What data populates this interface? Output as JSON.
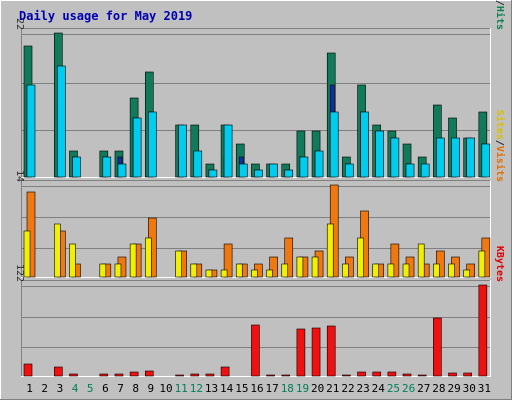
{
  "chart_data": {
    "type": "bar",
    "title": "Daily usage for May 2019",
    "days": [
      "1",
      "2",
      "3",
      "4",
      "5",
      "6",
      "7",
      "8",
      "9",
      "10",
      "11",
      "12",
      "13",
      "14",
      "15",
      "16",
      "17",
      "18",
      "19",
      "20",
      "21",
      "22",
      "23",
      "24",
      "25",
      "26",
      "27",
      "28",
      "29",
      "30",
      "31"
    ],
    "weekend_days": [
      "4",
      "5",
      "11",
      "12",
      "18",
      "19",
      "25",
      "26"
    ],
    "panels": [
      {
        "id": "hits",
        "max_label": "22",
        "ymax": 22,
        "legend": [
          {
            "text": "Pages",
            "color": "#00d8f8"
          },
          {
            "text": "/",
            "color": "#2c2c2c"
          },
          {
            "text": "Files",
            "color": "#0a0aa8"
          },
          {
            "text": "/",
            "color": "#2c2c2c"
          },
          {
            "text": "Hits",
            "color": "#108050"
          }
        ],
        "series": [
          {
            "name": "Hits",
            "color": "#117a5a",
            "values": [
              20,
              0,
              22,
              4,
              0,
              4,
              4,
              12,
              16,
              0,
              8,
              8,
              2,
              8,
              5,
              2,
              2,
              2,
              7,
              7,
              19,
              3,
              14,
              8,
              7,
              5,
              3,
              11,
              9,
              6,
              10
            ]
          },
          {
            "name": "Files",
            "color": "#0d2fae",
            "values": [
              8,
              0,
              12,
              3,
              0,
              3,
              3,
              9,
              10,
              0,
              3,
              3,
              1,
              3,
              3,
              1,
              1,
              1,
              3,
              4,
              14,
              2,
              10,
              7,
              6,
              2,
              1,
              5,
              5,
              4,
              5
            ]
          },
          {
            "name": "Pages",
            "color": "#00ccf0",
            "values": [
              14,
              0,
              17,
              3,
              0,
              3,
              2,
              9,
              10,
              0,
              8,
              4,
              1,
              8,
              2,
              1,
              2,
              1,
              3,
              4,
              10,
              2,
              10,
              7,
              6,
              2,
              2,
              6,
              6,
              6,
              5
            ]
          }
        ]
      },
      {
        "id": "visits",
        "max_label": "14",
        "ymax": 14,
        "legend": [
          {
            "text": "Sites",
            "color": "#d8c000"
          },
          {
            "text": "/",
            "color": "#2c2c2c"
          },
          {
            "text": "Visits",
            "color": "#e07000"
          }
        ],
        "series": [
          {
            "name": "Visits",
            "color": "#f07810",
            "values": [
              13,
              0,
              7,
              2,
              0,
              2,
              3,
              5,
              9,
              0,
              4,
              2,
              1,
              5,
              2,
              2,
              3,
              6,
              3,
              4,
              14,
              3,
              10,
              2,
              5,
              3,
              2,
              4,
              3,
              2,
              6
            ]
          },
          {
            "name": "Sites",
            "color": "#f0f000",
            "values": [
              7,
              0,
              8,
              5,
              0,
              2,
              2,
              5,
              6,
              0,
              4,
              2,
              1,
              1,
              2,
              1,
              1,
              2,
              3,
              3,
              8,
              2,
              6,
              2,
              2,
              2,
              5,
              2,
              2,
              1,
              4
            ]
          }
        ]
      },
      {
        "id": "kbytes",
        "max_label": "122",
        "ymax": 122,
        "legend": [
          {
            "text": "KBytes",
            "color": "#e00000"
          }
        ],
        "series": [
          {
            "name": "KBytes",
            "color": "#f01010",
            "values": [
              16,
              0,
              12,
              3,
              0,
              3,
              3,
              6,
              7,
              0,
              1,
              3,
              3,
              12,
              0,
              68,
              1,
              1,
              63,
              65,
              67,
              2,
              6,
              5,
              5,
              3,
              2,
              78,
              4,
              4,
              122
            ]
          }
        ]
      }
    ]
  }
}
